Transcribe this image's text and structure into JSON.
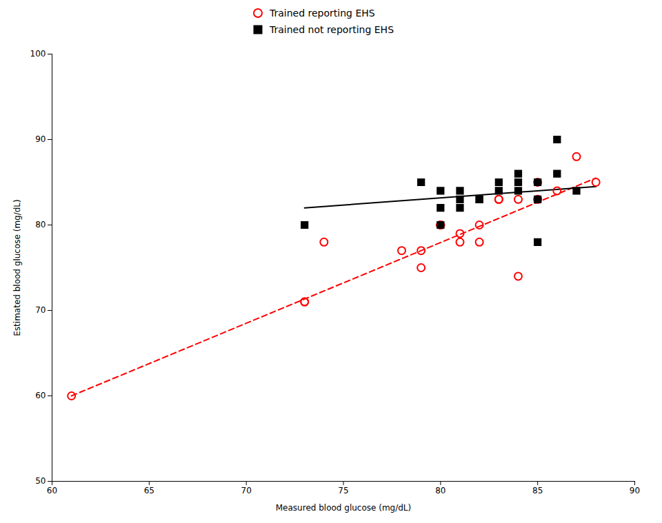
{
  "chart_data": {
    "type": "scatter",
    "xlabel": "Measured blood glucose (mg/dL)",
    "ylabel": "Estimated blood glucose (mg/dL)",
    "xlim": [
      60,
      90
    ],
    "ylim": [
      50,
      100
    ],
    "xticks": [
      60,
      65,
      70,
      75,
      80,
      85,
      90
    ],
    "yticks": [
      50,
      60,
      70,
      80,
      90,
      100
    ],
    "grid": false,
    "legend": "top",
    "series": [
      {
        "name": "Trained reporting EHS",
        "color": "#ff0000",
        "marker": "open-circle",
        "x": [
          61,
          73,
          73,
          74,
          78,
          79,
          79,
          80,
          80,
          80,
          81,
          81,
          82,
          82,
          83,
          83,
          84,
          84,
          85,
          85,
          86,
          87,
          88
        ],
        "values": [
          60,
          71,
          71,
          78,
          77,
          77,
          75,
          80,
          80,
          80,
          79,
          78,
          78,
          80,
          83,
          83,
          83,
          74,
          83,
          85,
          84,
          88,
          85
        ]
      },
      {
        "name": "Trained not reporting EHS",
        "color": "#000000",
        "marker": "square",
        "x": [
          73,
          79,
          80,
          80,
          80,
          81,
          81,
          81,
          82,
          82,
          83,
          83,
          84,
          84,
          84,
          85,
          85,
          85,
          86,
          86,
          87
        ],
        "values": [
          80,
          85,
          84,
          80,
          82,
          83,
          84,
          82,
          83,
          83,
          84,
          85,
          84,
          85,
          86,
          85,
          83,
          78,
          86,
          90,
          84
        ]
      },
      {
        "type": "line",
        "color": "#ff0000",
        "line_style": "dashed",
        "x": [
          61,
          88
        ],
        "values": [
          60,
          85.5
        ]
      },
      {
        "type": "line",
        "color": "#000000",
        "line_style": "solid",
        "x": [
          73,
          88
        ],
        "values": [
          82,
          84.5
        ]
      }
    ]
  }
}
